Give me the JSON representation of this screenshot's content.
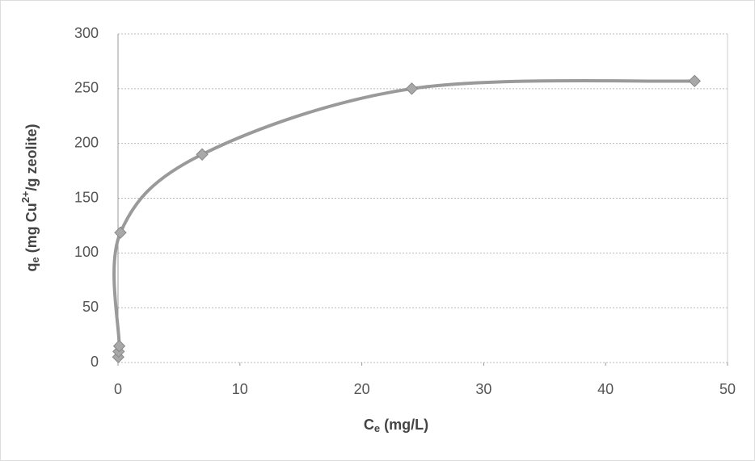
{
  "chart_data": {
    "type": "scatter_smooth",
    "x_label": [
      "C",
      "e",
      " (mg/L)"
    ],
    "y_label": [
      "q",
      "e",
      " (mg Cu",
      "2+",
      "/g zeolite)"
    ],
    "x": [
      0.02,
      0.05,
      0.1,
      0.2,
      6.9,
      24.1,
      47.3
    ],
    "y": [
      5,
      10,
      15,
      118.6,
      190,
      250,
      257
    ],
    "line_color": "#9a9a9a",
    "marker_color": "#a8a8a8",
    "xlim": [
      0,
      50
    ],
    "xticks": [
      0,
      10,
      20,
      30,
      40,
      50
    ],
    "ylim": [
      0,
      300
    ],
    "yticks": [
      0,
      50,
      100,
      150,
      200,
      250,
      300
    ],
    "grid": true
  }
}
